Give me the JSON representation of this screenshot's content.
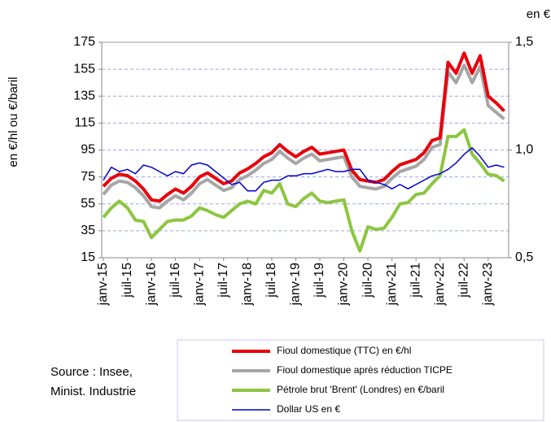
{
  "chart_data": {
    "type": "line",
    "ylabel": "en €/hl ou €/baril",
    "y2label": "en €",
    "source": [
      "Source : Insee,",
      "Minist. Industrie"
    ],
    "categories": [
      "janv-15",
      null,
      null,
      "juil-15",
      null,
      null,
      "janv-16",
      null,
      null,
      "juil-16",
      null,
      null,
      "janv-17",
      null,
      null,
      "juil-17",
      null,
      null,
      "janv-18",
      null,
      null,
      "juil-18",
      null,
      null,
      "janv-19",
      null,
      null,
      "juil-19",
      null,
      null,
      "janv-20",
      null,
      null,
      "juil-20",
      null,
      null,
      "janv-21",
      null,
      null,
      "juil-21",
      null,
      null,
      "janv-22",
      null,
      null,
      "juil-22",
      null,
      null,
      "janv-23",
      null,
      null
    ],
    "ylim": [
      15,
      175
    ],
    "yticks": [
      15,
      35,
      55,
      75,
      95,
      115,
      135,
      155,
      175
    ],
    "y2lim": [
      0.5,
      1.5
    ],
    "y2ticks": [
      {
        "value": 0.5,
        "label": "0,5"
      },
      {
        "value": 1.0,
        "label": "1,0"
      },
      {
        "value": 1.5,
        "label": "1,5"
      }
    ],
    "grid": true,
    "series": [
      {
        "name": "Fioul domestique (TTC) en €/hl",
        "color": "#e8000b",
        "values": [
          68,
          74,
          77,
          76,
          72,
          66,
          58,
          57,
          62,
          66,
          63,
          68,
          75,
          78,
          74,
          70,
          72,
          78,
          81,
          85,
          90,
          93,
          99,
          94,
          90,
          94,
          97,
          92,
          93,
          94,
          95,
          80,
          73,
          72,
          71,
          73,
          79,
          84,
          86,
          88,
          93,
          102,
          104,
          160,
          152,
          167,
          152,
          165,
          135,
          130,
          124
        ]
      },
      {
        "name": "Fioul domestique après réduction TICPE",
        "color": "#a6a6a6",
        "values": [
          62,
          69,
          72,
          71,
          67,
          61,
          53,
          52,
          57,
          61,
          58,
          63,
          70,
          73,
          69,
          65,
          67,
          73,
          76,
          80,
          85,
          88,
          94,
          89,
          85,
          89,
          92,
          87,
          88,
          89,
          90,
          75,
          68,
          67,
          66,
          68,
          74,
          79,
          81,
          83,
          88,
          97,
          99,
          153,
          145,
          158,
          145,
          157,
          128,
          123,
          118
        ]
      },
      {
        "name": "Pétrole brut 'Brent' (Londres) en €/baril",
        "color": "#8cc63f",
        "values": [
          45,
          52,
          57,
          52,
          43,
          42,
          30,
          36,
          42,
          43,
          43,
          46,
          52,
          50,
          47,
          45,
          50,
          55,
          57,
          55,
          65,
          63,
          70,
          55,
          53,
          59,
          63,
          57,
          56,
          57,
          58,
          35,
          20,
          38,
          36,
          37,
          45,
          55,
          56,
          62,
          63,
          70,
          76,
          105,
          105,
          110,
          92,
          85,
          77,
          76,
          72
        ]
      },
      {
        "name": "Dollar US en €",
        "color": "#0000cc",
        "axis": "y2",
        "values": [
          0.86,
          0.92,
          0.9,
          0.91,
          0.89,
          0.93,
          0.92,
          0.9,
          0.88,
          0.9,
          0.89,
          0.93,
          0.94,
          0.93,
          0.9,
          0.87,
          0.84,
          0.85,
          0.81,
          0.81,
          0.85,
          0.86,
          0.86,
          0.88,
          0.88,
          0.89,
          0.89,
          0.9,
          0.91,
          0.9,
          0.9,
          0.91,
          0.91,
          0.86,
          0.85,
          0.84,
          0.82,
          0.84,
          0.82,
          0.84,
          0.86,
          0.88,
          0.89,
          0.91,
          0.94,
          0.98,
          1.01,
          0.97,
          0.92,
          0.93,
          0.92
        ]
      }
    ]
  }
}
